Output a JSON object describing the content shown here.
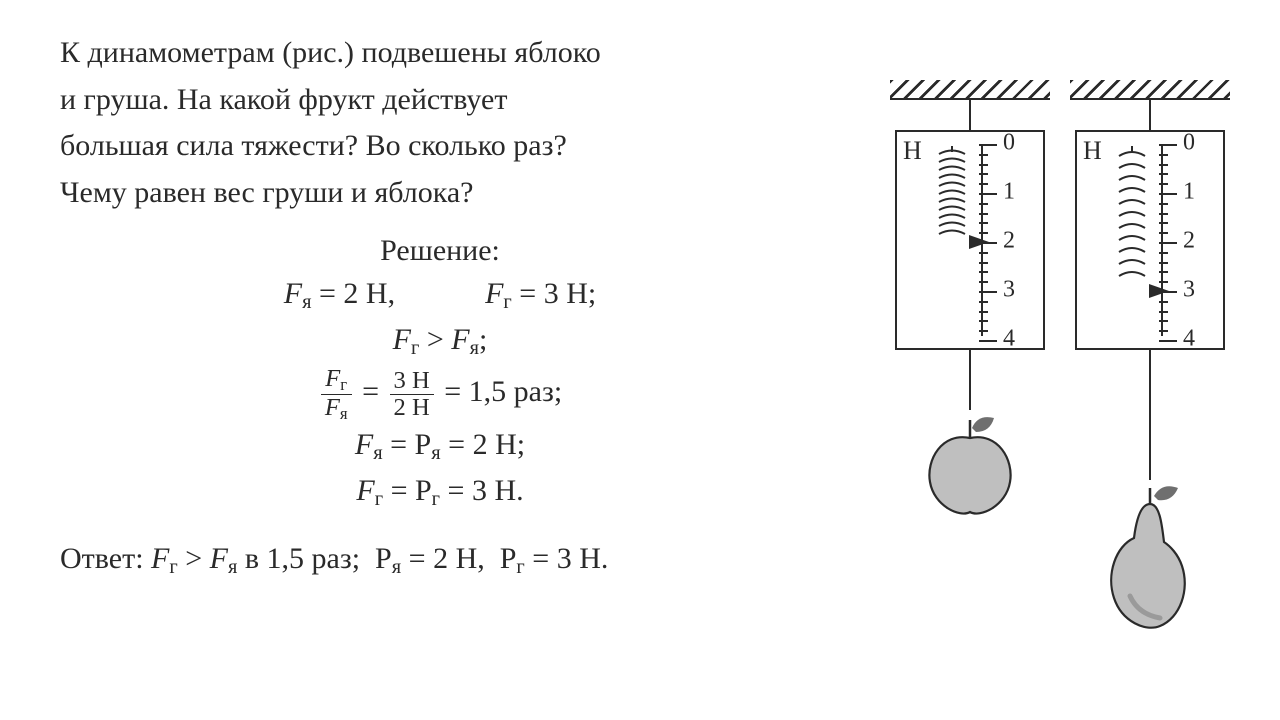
{
  "problem": {
    "line1": "К динамометрам (рис.) подвешены яблоко",
    "line2": "и груша. На какой фрукт действует",
    "line3": "большая сила тяжести? Во сколько раз?",
    "line4": "Чему равен вес груши и яблока?"
  },
  "solution": {
    "title": "Решение:",
    "f_ya_value": "2 Н",
    "f_g_value": "3 Н",
    "ratio_num": "3 H",
    "ratio_den": "2 H",
    "ratio_result": "1,5 раз",
    "p_ya": "2 Н",
    "p_g": "3 Н"
  },
  "answer": {
    "prefix": "Ответ: ",
    "factor": "в 1,5 раз",
    "p_ya": "2 Н",
    "p_g": "3 Н"
  },
  "dyno": {
    "unit": "Н",
    "tick_labels": [
      "0",
      "1",
      "2",
      "3",
      "4"
    ],
    "scale_min": 0,
    "scale_max": 4,
    "left_reading": 2,
    "right_reading": 3,
    "colors": {
      "line": "#2a2a2a",
      "fruit_fill": "#bfbfbf",
      "fruit_shadow": "#9a9a9a",
      "leaf": "#6f6f6f"
    }
  }
}
